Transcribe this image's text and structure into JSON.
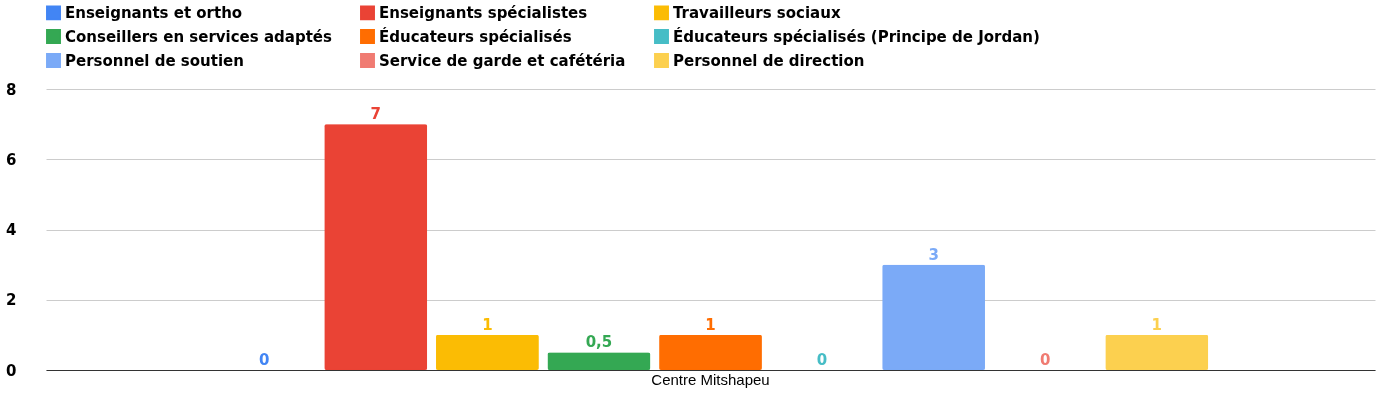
{
  "chart_data": {
    "type": "bar",
    "categories": [
      "Centre Mitshapeu"
    ],
    "ylim": [
      0,
      8
    ],
    "yticks": [
      0,
      2,
      4,
      6,
      8
    ],
    "grid": "y",
    "legend": "top",
    "series": [
      {
        "name": "Enseignants et ortho",
        "color": "#4285f4",
        "values": [
          0
        ],
        "value_labels": [
          "0"
        ]
      },
      {
        "name": "Enseignants spécialistes",
        "color": "#ea4335",
        "values": [
          7
        ],
        "value_labels": [
          "7"
        ]
      },
      {
        "name": "Travailleurs sociaux",
        "color": "#fbbc04",
        "values": [
          1
        ],
        "value_labels": [
          "1"
        ]
      },
      {
        "name": "Conseillers en services adaptés",
        "color": "#34a853",
        "values": [
          0.5
        ],
        "value_labels": [
          "0,5"
        ]
      },
      {
        "name": "Éducateurs spécialisés",
        "color": "#ff6d01",
        "values": [
          1
        ],
        "value_labels": [
          "1"
        ]
      },
      {
        "name": "Éducateurs spécialisés (Principe de Jordan)",
        "color": "#46bdc6",
        "values": [
          0
        ],
        "value_labels": [
          "0"
        ]
      },
      {
        "name": "Personnel de soutien",
        "color": "#7baaf7",
        "values": [
          3
        ],
        "value_labels": [
          "3"
        ]
      },
      {
        "name": "Service de garde et cafétéria",
        "color": "#f07b72",
        "values": [
          0
        ],
        "value_labels": [
          "0"
        ]
      },
      {
        "name": "Personnel de direction",
        "color": "#fcd04f",
        "values": [
          1
        ],
        "value_labels": [
          "1"
        ]
      }
    ]
  }
}
